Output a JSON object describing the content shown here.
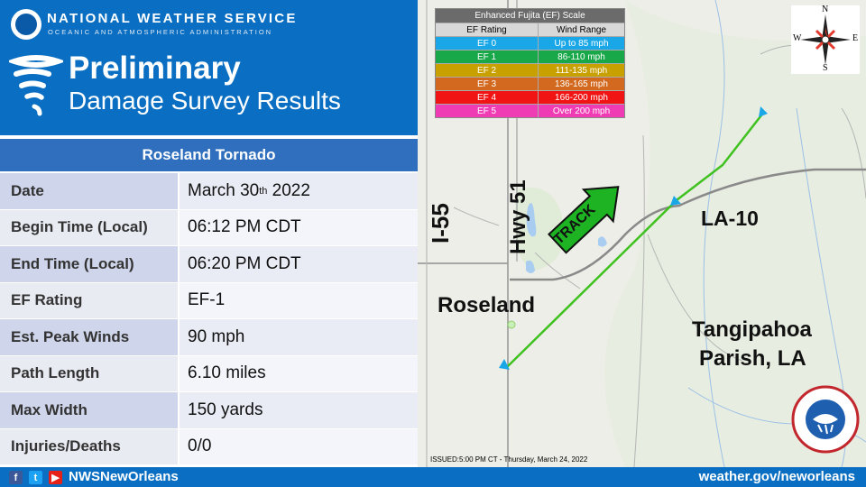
{
  "header": {
    "agency": "NATIONAL WEATHER SERVICE",
    "agency_sub": "OCEANIC AND ATMOSPHERIC ADMINISTRATION",
    "title_line1": "Preliminary",
    "title_line2": "Damage Survey Results"
  },
  "survey": {
    "event_name": "Roseland Tornado",
    "rows": [
      {
        "label": "Date",
        "value_main": "March 30",
        "value_sup": "th",
        "value_tail": " 2022"
      },
      {
        "label": "Begin Time (Local)",
        "value": "06:12 PM CDT"
      },
      {
        "label": "End Time (Local)",
        "value": "06:20 PM CDT"
      },
      {
        "label": "EF Rating",
        "value": "EF-1"
      },
      {
        "label": "Est. Peak Winds",
        "value": "90 mph"
      },
      {
        "label": "Path Length",
        "value": "6.10 miles"
      },
      {
        "label": "Max Width",
        "value": "150 yards"
      },
      {
        "label": "Injuries/Deaths",
        "value": "0/0"
      }
    ]
  },
  "ef_scale": {
    "title": "Enhanced Fujita (EF) Scale",
    "col_rating": "EF Rating",
    "col_wind": "Wind Range",
    "rows": [
      {
        "rating": "EF 0",
        "wind": "Up to 85 mph",
        "color": "#1aa7e8",
        "text_color": "#ffffff"
      },
      {
        "rating": "EF 1",
        "wind": "86-110 mph",
        "color": "#18a84a",
        "text_color": "#ffffff"
      },
      {
        "rating": "EF 2",
        "wind": "111-135 mph",
        "color": "#c8a000",
        "text_color": "#ffffff"
      },
      {
        "rating": "EF 3",
        "wind": "136-165 mph",
        "color": "#d2691e",
        "text_color": "#ffffff"
      },
      {
        "rating": "EF 4",
        "wind": "166-200 mph",
        "color": "#f01414",
        "text_color": "#ffffff"
      },
      {
        "rating": "EF 5",
        "wind": "Over 200 mph",
        "color": "#f03cb4",
        "text_color": "#ffffff"
      }
    ]
  },
  "map": {
    "labels": {
      "i55": "I-55",
      "hwy51": "Hwy 51",
      "track": "TRACK",
      "la10": "LA-10",
      "town": "Roseland",
      "parish_line1": "Tangipahoa",
      "parish_line2": "Parish, LA"
    },
    "compass": {
      "n": "N",
      "s": "S",
      "e": "E",
      "w": "W"
    },
    "issued": "ISSUED:5:00 PM CT - Thursday, March 24, 2022",
    "track_color": "#3fc21f"
  },
  "footer": {
    "handle": "NWSNewOrleans",
    "site": "weather.gov/neworleans",
    "icons": [
      "facebook-icon",
      "twitter-icon",
      "youtube-icon"
    ]
  }
}
